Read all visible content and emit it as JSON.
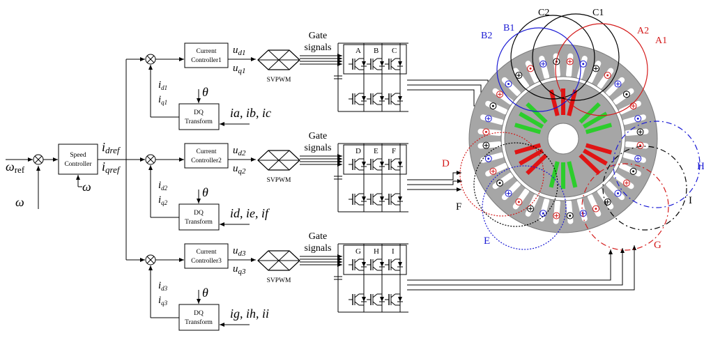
{
  "inputs": {
    "omega_ref_main": "ω",
    "omega_ref_sub": "ref",
    "omega_fb": "ω",
    "omega_fb_small": "ω"
  },
  "speed_controller": {
    "line1": "Speed",
    "line2": "Controller"
  },
  "ref_currents": {
    "id_main": "i",
    "id_sub": "dref",
    "iq_main": "i",
    "iq_sub": "qref"
  },
  "channels": [
    {
      "controller_l1": "Current",
      "controller_l2": "Controller1",
      "u_d": "u",
      "u_d_sub": "d1",
      "u_q": "u",
      "u_q_sub": "q1",
      "fb_d": "i",
      "fb_d_sub": "d1",
      "fb_q": "i",
      "fb_q_sub": "q1",
      "dq_l1": "DQ",
      "dq_l2": "Transform",
      "theta": "θ",
      "phase_currents": "ia, ib, ic",
      "svpwm": "SVPWM",
      "gate_l1": "Gate",
      "gate_l2": "signals",
      "legs": [
        "A",
        "B",
        "C"
      ]
    },
    {
      "controller_l1": "Current",
      "controller_l2": "Controller2",
      "u_d": "u",
      "u_d_sub": "d2",
      "u_q": "u",
      "u_q_sub": "q2",
      "fb_d": "i",
      "fb_d_sub": "d2",
      "fb_q": "i",
      "fb_q_sub": "q2",
      "dq_l1": "DQ",
      "dq_l2": "Transform",
      "theta": "θ",
      "phase_currents": "id, ie, if",
      "svpwm": "SVPWM",
      "gate_l1": "Gate",
      "gate_l2": "signals",
      "legs": [
        "D",
        "E",
        "F"
      ]
    },
    {
      "controller_l1": "Current",
      "controller_l2": "Controller3",
      "u_d": "u",
      "u_d_sub": "d3",
      "u_q": "u",
      "u_q_sub": "q3",
      "fb_d": "i",
      "fb_d_sub": "d3",
      "fb_q": "i",
      "fb_q_sub": "q3",
      "dq_l1": "DQ",
      "dq_l2": "Transform",
      "theta": "θ",
      "phase_currents": "ig, ih, ii",
      "svpwm": "SVPWM",
      "gate_l1": "Gate",
      "gate_l2": "signals",
      "legs": [
        "G",
        "H",
        "I"
      ]
    }
  ],
  "winding_labels": {
    "A1": "A1",
    "A2": "A2",
    "B1": "B1",
    "B2": "B2",
    "C1": "C1",
    "C2": "C2",
    "D": "D",
    "E": "E",
    "F": "F",
    "G": "G",
    "H": "H",
    "I": "I"
  },
  "colors": {
    "abc_a": "#d41a1a",
    "abc_b": "#1a1ad4",
    "abc_c": "#000000",
    "stator": "#a6a6a6",
    "coil_red": "#e01414",
    "coil_green": "#2ccd2c"
  }
}
